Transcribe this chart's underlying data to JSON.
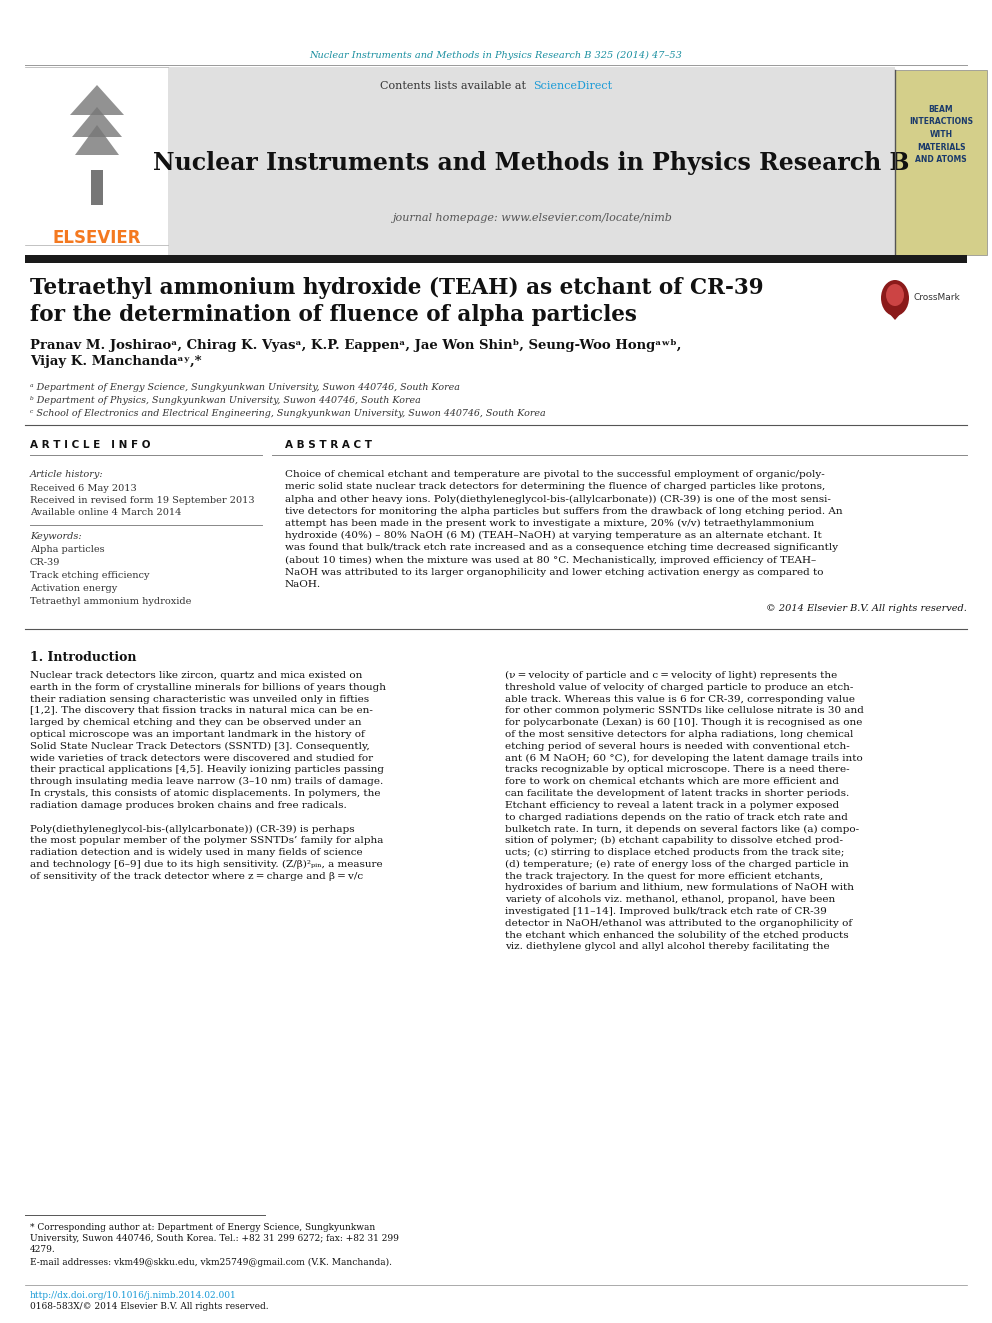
{
  "top_journal_line": "Nuclear Instruments and Methods in Physics Research B 325 (2014) 47–53",
  "journal_name": "Nuclear Instruments and Methods in Physics Research B",
  "journal_homepage": "journal homepage: www.elsevier.com/locate/nimb",
  "contents_line": "Contents lists available at ",
  "sciencedirect_text": "ScienceDirect",
  "elsevier_color": "#f47920",
  "sciencedirect_color": "#1a9bd7",
  "article_title_line1": "Tetraethyl ammonium hydroxide (TEAH) as etchant of CR-39",
  "article_title_line2": "for the determination of fluence of alpha particles",
  "author_line1_plain": "Pranav M. Joshirao",
  "author_line1_rest": ", Chirag K. Vyas",
  "author_line2": "Vijay K. Manchanda",
  "affil_a": "ᵃ Department of Energy Science, Sungkyunkwan University, Suwon 440746, South Korea",
  "affil_b": "ᵇ Department of Physics, Sungkyunkwan University, Suwon 440746, South Korea",
  "affil_c": "ᶜ School of Electronics and Electrical Engineering, Sungkyunkwan University, Suwon 440746, South Korea",
  "article_info_title": "ARTICLE INFO",
  "article_history_label": "Article history:",
  "received": "Received 6 May 2013",
  "revised": "Received in revised form 19 September 2013",
  "available": "Available online 4 March 2014",
  "keywords_label": "Keywords:",
  "keywords": [
    "Alpha particles",
    "CR-39",
    "Track etching efficiency",
    "Activation energy",
    "Tetraethyl ammonium hydroxide"
  ],
  "abstract_title": "ABSTRACT",
  "abstract_lines": [
    "Choice of chemical etchant and temperature are pivotal to the successful employment of organic/poly-",
    "meric solid state nuclear track detectors for determining the fluence of charged particles like protons,",
    "alpha and other heavy ions. Poly(diethyleneglycol-bis-(allylcarbonate)) (CR-39) is one of the most sensi-",
    "tive detectors for monitoring the alpha particles but suffers from the drawback of long etching period. An",
    "attempt has been made in the present work to investigate a mixture, 20% (v/v) tetraethylammonium",
    "hydroxide (40%) – 80% NaOH (6 M) (TEAH–NaOH) at varying temperature as an alternate etchant. It",
    "was found that bulk/track etch rate increased and as a consequence etching time decreased significantly",
    "(about 10 times) when the mixture was used at 80 °C. Mechanistically, improved efficiency of TEAH–",
    "NaOH was attributed to its larger organophilicity and lower etching activation energy as compared to",
    "NaOH."
  ],
  "copyright_line": "© 2014 Elsevier B.V. All rights reserved.",
  "intro_title": "1. Introduction",
  "intro_col1_lines": [
    "Nuclear track detectors like zircon, quartz and mica existed on",
    "earth in the form of crystalline minerals for billions of years though",
    "their radiation sensing characteristic was unveiled only in fifties",
    "[1,2]. The discovery that fission tracks in natural mica can be en-",
    "larged by chemical etching and they can be observed under an",
    "optical microscope was an important landmark in the history of",
    "Solid State Nuclear Track Detectors (SSNTD) [3]. Consequently,",
    "wide varieties of track detectors were discovered and studied for",
    "their practical applications [4,5]. Heavily ionizing particles passing",
    "through insulating media leave narrow (3–10 nm) trails of damage.",
    "In crystals, this consists of atomic displacements. In polymers, the",
    "radiation damage produces broken chains and free radicals.",
    "",
    "Poly(diethyleneglycol-bis-(allylcarbonate)) (CR-39) is perhaps",
    "the most popular member of the polymer SSNTDs’ family for alpha",
    "radiation detection and is widely used in many fields of science",
    "and technology [6–9] due to its high sensitivity. (Z/β)²ₚᵢₙ, a measure",
    "of sensitivity of the track detector where z = charge and β = v/c"
  ],
  "intro_col2_lines": [
    "(ν = velocity of particle and c = velocity of light) represents the",
    "threshold value of velocity of charged particle to produce an etch-",
    "able track. Whereas this value is 6 for CR-39, corresponding value",
    "for other common polymeric SSNTDs like cellulose nitrate is 30 and",
    "for polycarbonate (Lexan) is 60 [10]. Though it is recognised as one",
    "of the most sensitive detectors for alpha radiations, long chemical",
    "etching period of several hours is needed with conventional etch-",
    "ant (6 M NaOH; 60 °C), for developing the latent damage trails into",
    "tracks recognizable by optical microscope. There is a need there-",
    "fore to work on chemical etchants which are more efficient and",
    "can facilitate the development of latent tracks in shorter periods.",
    "Etchant efficiency to reveal a latent track in a polymer exposed",
    "to charged radiations depends on the ratio of track etch rate and",
    "bulketch rate. In turn, it depends on several factors like (a) compo-",
    "sition of polymer; (b) etchant capability to dissolve etched prod-",
    "ucts; (c) stirring to displace etched products from the track site;",
    "(d) temperature; (e) rate of energy loss of the charged particle in",
    "the track trajectory. In the quest for more efficient etchants,",
    "hydroxides of barium and lithium, new formulations of NaOH with",
    "variety of alcohols viz. methanol, ethanol, propanol, have been",
    "investigated [11–14]. Improved bulk/track etch rate of CR-39",
    "detector in NaOH/ethanol was attributed to the organophilicity of",
    "the etchant which enhanced the solubility of the etched products",
    "viz. diethylene glycol and allyl alcohol thereby facilitating the"
  ],
  "footnote_star": "* Corresponding author at: Department of Energy Science, Sungkyunkwan",
  "footnote_line2": "University, Suwon 440746, South Korea. Tel.: +82 31 299 6272; fax: +82 31 299",
  "footnote_line3": "4279.",
  "footnote_email": "E-mail addresses: vkm49@skku.edu, vkm25749@gmail.com (V.K. Manchanda).",
  "footer_doi": "http://dx.doi.org/10.1016/j.nimb.2014.02.001",
  "footer_issn": "0168-583X/© 2014 Elsevier B.V. All rights reserved.",
  "bg_color": "#ffffff",
  "text_color": "#111111",
  "header_bg": "#e0e0e0",
  "cover_bg": "#d4cf8a",
  "cover_text_color": "#1a3a6b",
  "bar_color": "#1a1a1a",
  "divider_color": "#888888"
}
